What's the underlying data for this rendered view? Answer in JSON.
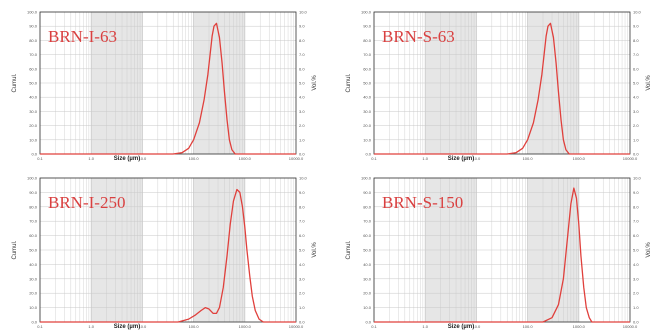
{
  "chart_data": [
    {
      "type": "line",
      "title": "BRN-I-63",
      "xlabel": "Size (µm)",
      "ylabel_left": "Cumul.",
      "ylabel_right": "Vol.%",
      "x_scale": "log",
      "xlim": [
        0.1,
        10000
      ],
      "x_ticks": [
        "0.1",
        "1.0",
        "10.0",
        "100.0",
        "1000.0",
        "10000.0"
      ],
      "ylim_left": [
        0,
        100
      ],
      "y_ticks_left": [
        "0.0",
        "10.0",
        "20.0",
        "30.0",
        "40.0",
        "50.0",
        "60.0",
        "70.0",
        "80.0",
        "90.0",
        "100.0"
      ],
      "ylim_right": [
        0,
        10
      ],
      "y_ticks_right": [
        "0.0",
        "1.0",
        "2.0",
        "3.0",
        "4.0",
        "5.0",
        "6.0",
        "7.0",
        "8.0",
        "9.0",
        "10.0"
      ],
      "grid": true,
      "series": [
        {
          "x": [
            0.1,
            10,
            40,
            60,
            80,
            100,
            130,
            160,
            190,
            210,
            230,
            250,
            280,
            320,
            360,
            400,
            450,
            500,
            560,
            650,
            10000
          ],
          "y": [
            0,
            0,
            0,
            0.1,
            0.4,
            1.0,
            2.2,
            3.8,
            5.6,
            7.0,
            8.3,
            9.0,
            9.2,
            8.2,
            6.4,
            4.4,
            2.4,
            1.0,
            0.3,
            0,
            0
          ]
        }
      ]
    },
    {
      "type": "line",
      "title": "BRN-S-63",
      "xlabel": "Size (µm)",
      "ylabel_left": "Cumul.",
      "ylabel_right": "Vol.%",
      "x_scale": "log",
      "xlim": [
        0.1,
        10000
      ],
      "x_ticks": [
        "0.1",
        "1.0",
        "10.0",
        "100.0",
        "1000.0",
        "10000.0"
      ],
      "ylim_left": [
        0,
        100
      ],
      "y_ticks_left": [
        "0.0",
        "10.0",
        "20.0",
        "30.0",
        "40.0",
        "50.0",
        "60.0",
        "70.0",
        "80.0",
        "90.0",
        "100.0"
      ],
      "ylim_right": [
        0,
        10
      ],
      "y_ticks_right": [
        "0.0",
        "1.0",
        "2.0",
        "3.0",
        "4.0",
        "5.0",
        "6.0",
        "7.0",
        "8.0",
        "9.0",
        "10.0"
      ],
      "grid": true,
      "series": [
        {
          "x": [
            0.1,
            10,
            40,
            60,
            80,
            100,
            130,
            160,
            190,
            210,
            230,
            250,
            280,
            320,
            360,
            400,
            450,
            500,
            560,
            650,
            10000
          ],
          "y": [
            0,
            0,
            0,
            0.1,
            0.4,
            1.0,
            2.2,
            3.8,
            5.6,
            7.0,
            8.3,
            9.0,
            9.2,
            8.2,
            6.4,
            4.4,
            2.4,
            1.0,
            0.3,
            0,
            0
          ]
        }
      ]
    },
    {
      "type": "line",
      "title": "BRN-I-250",
      "xlabel": "Size (µm)",
      "ylabel_left": "Cumul.",
      "ylabel_right": "Vol.%",
      "x_scale": "log",
      "xlim": [
        0.1,
        10000
      ],
      "x_ticks": [
        "0.1",
        "1.0",
        "10.0",
        "100.0",
        "1000.0",
        "10000.0"
      ],
      "ylim_left": [
        0,
        100
      ],
      "y_ticks_left": [
        "0.0",
        "10.0",
        "20.0",
        "30.0",
        "40.0",
        "50.0",
        "60.0",
        "70.0",
        "80.0",
        "90.0",
        "100.0"
      ],
      "ylim_right": [
        0,
        10
      ],
      "y_ticks_right": [
        "0.0",
        "1.0",
        "2.0",
        "3.0",
        "4.0",
        "5.0",
        "6.0",
        "7.0",
        "8.0",
        "9.0",
        "10.0"
      ],
      "grid": true,
      "series": [
        {
          "x": [
            0.1,
            10,
            50,
            80,
            110,
            140,
            170,
            200,
            240,
            280,
            320,
            380,
            450,
            520,
            600,
            700,
            800,
            900,
            1000,
            1100,
            1250,
            1400,
            1600,
            1900,
            2300,
            10000
          ],
          "y": [
            0,
            0,
            0,
            0.2,
            0.5,
            0.8,
            1.0,
            0.9,
            0.6,
            0.6,
            1.0,
            2.4,
            4.6,
            6.8,
            8.4,
            9.2,
            9.0,
            8.0,
            6.6,
            5.0,
            3.2,
            1.8,
            0.8,
            0.2,
            0,
            0
          ]
        }
      ]
    },
    {
      "type": "line",
      "title": "BRN-S-150",
      "xlabel": "Size (µm)",
      "ylabel_left": "Cumul.",
      "ylabel_right": "Vol.%",
      "x_scale": "log",
      "xlim": [
        0.1,
        10000
      ],
      "x_ticks": [
        "0.1",
        "1.0",
        "10.0",
        "100.0",
        "1000.0",
        "10000.0"
      ],
      "ylim_left": [
        0,
        100
      ],
      "y_ticks_left": [
        "0.0",
        "10.0",
        "20.0",
        "30.0",
        "40.0",
        "50.0",
        "60.0",
        "70.0",
        "80.0",
        "90.0",
        "100.0"
      ],
      "ylim_right": [
        0,
        10
      ],
      "y_ticks_right": [
        "0.0",
        "1.0",
        "2.0",
        "3.0",
        "4.0",
        "5.0",
        "6.0",
        "7.0",
        "8.0",
        "9.0",
        "10.0"
      ],
      "grid": true,
      "series": [
        {
          "x": [
            0.1,
            10,
            200,
            300,
            400,
            500,
            600,
            700,
            800,
            900,
            1000,
            1100,
            1250,
            1400,
            1600,
            1800,
            10000
          ],
          "y": [
            0,
            0,
            0,
            0.3,
            1.2,
            3.0,
            5.8,
            8.2,
            9.3,
            8.6,
            6.8,
            4.6,
            2.4,
            1.0,
            0.3,
            0,
            0
          ]
        }
      ]
    }
  ],
  "colors": {
    "curve": "#e0403c",
    "title": "#d94040",
    "grid": "#c9c9c9",
    "band": "#e6e6e6",
    "axis": "#333333"
  }
}
